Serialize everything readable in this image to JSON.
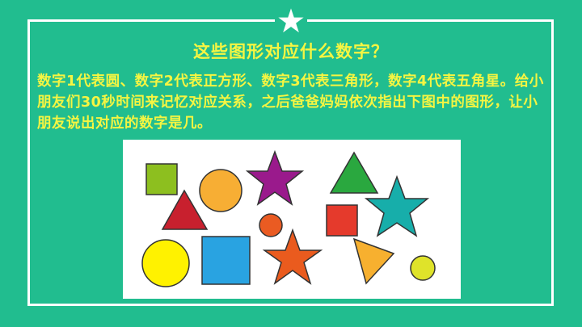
{
  "slide": {
    "title": "这些图形对应什么数字？",
    "instructions": "数字1代表圆、数字2代表正方形、数字3代表三角形，数字4代表五角星。给小朋友们30秒时间来记忆对应关系，之后爸爸妈妈依次指出下图中的图形，让小朋友说出对应的数字是几。"
  },
  "colors": {
    "background": "#21bd8f",
    "text": "#f5f542",
    "frame": "#ffffff"
  },
  "shapes": [
    {
      "kind": "square",
      "color": "#8dbf1f"
    },
    {
      "kind": "circle",
      "color": "#f7ae34"
    },
    {
      "kind": "star",
      "color": "#9a1a8c"
    },
    {
      "kind": "triangle",
      "color": "#2aa83f"
    },
    {
      "kind": "triangle",
      "color": "#c8202e"
    },
    {
      "kind": "star",
      "color": "#17aeaa"
    },
    {
      "kind": "circle",
      "color": "#ea5b22"
    },
    {
      "kind": "square",
      "color": "#e53a2c"
    },
    {
      "kind": "circle",
      "color": "#fff200"
    },
    {
      "kind": "square",
      "color": "#29a3e1"
    },
    {
      "kind": "star",
      "color": "#ea5b1e"
    },
    {
      "kind": "triangle",
      "color": "#f7b02f"
    },
    {
      "kind": "circle",
      "color": "#dfe32a"
    }
  ]
}
